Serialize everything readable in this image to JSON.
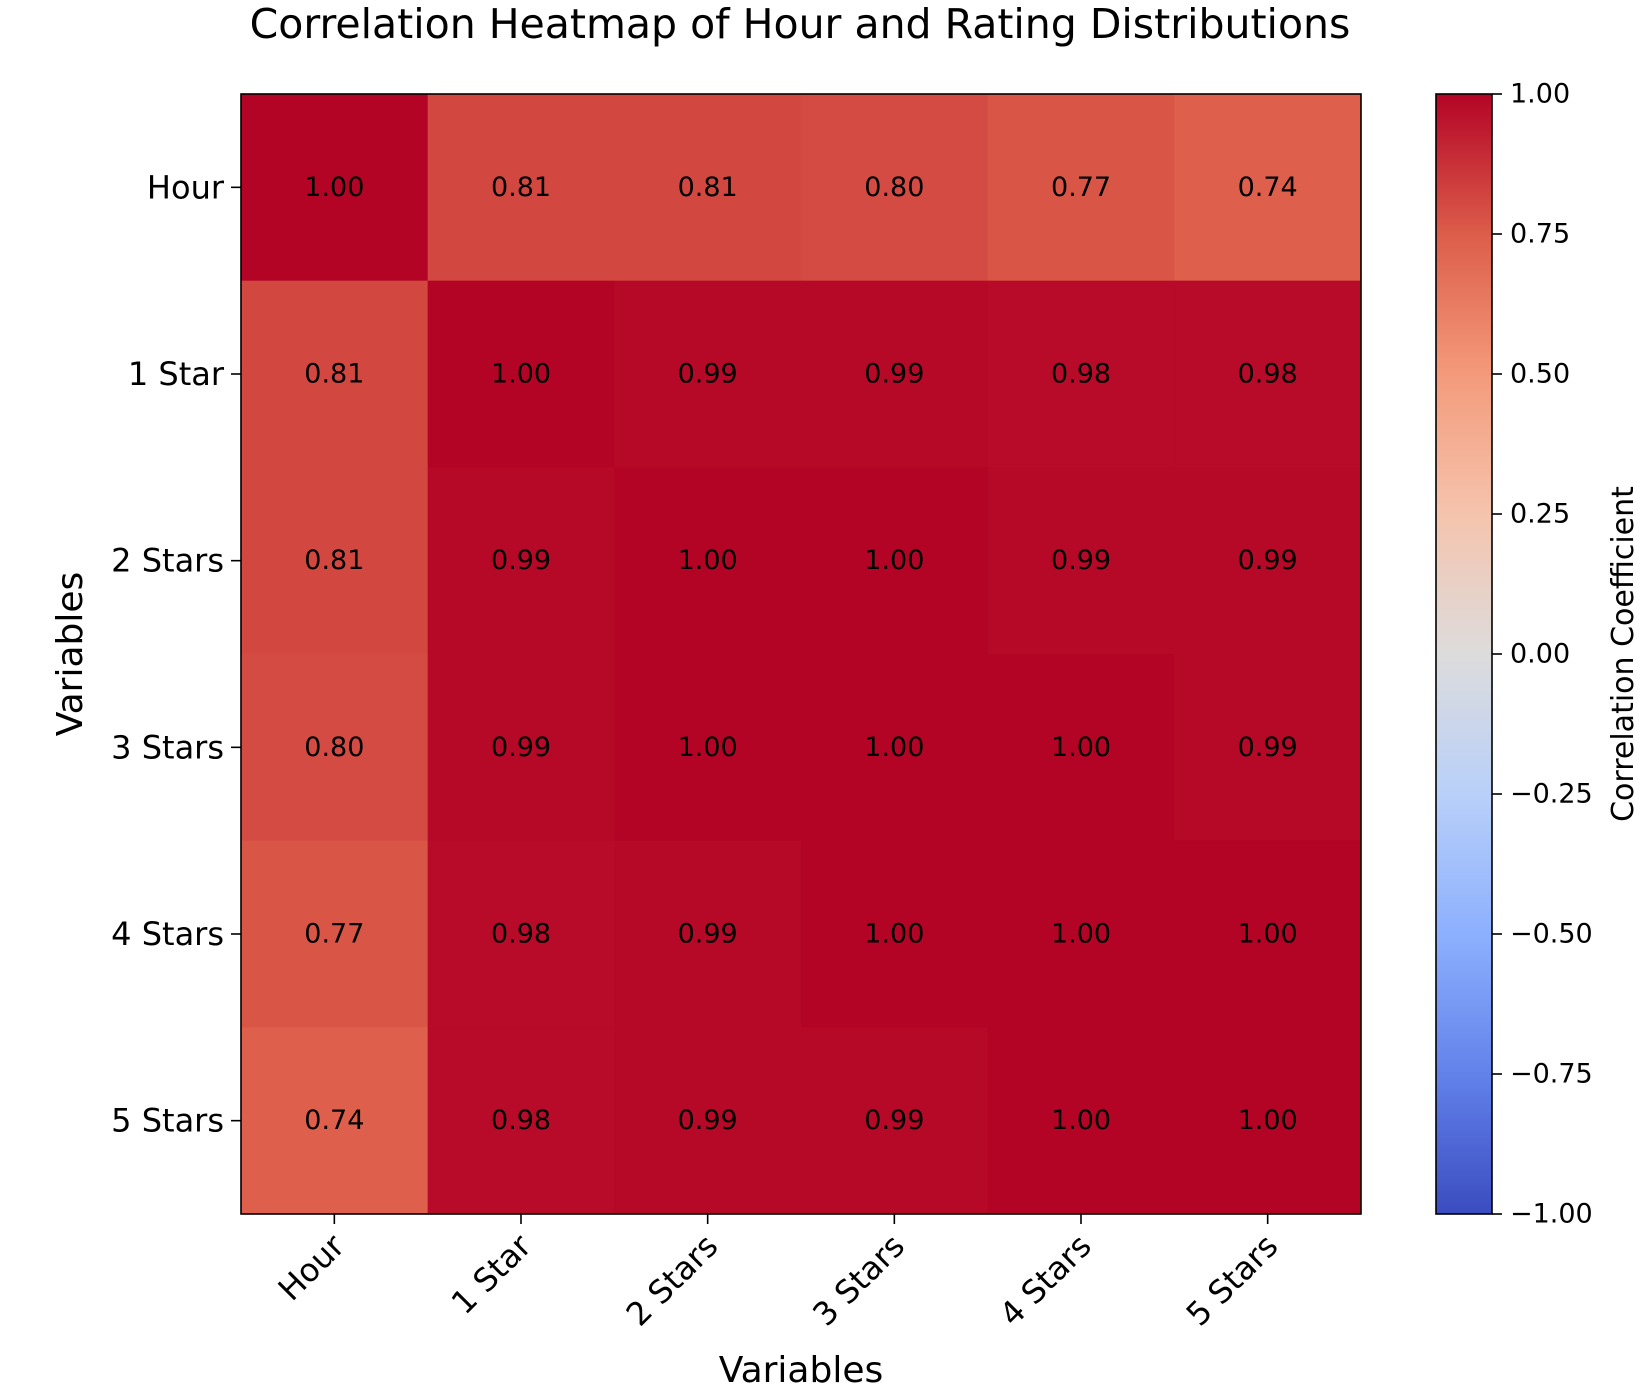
{
  "chart_data": {
    "type": "heatmap",
    "title": "Correlation Heatmap of Hour and Rating Distributions",
    "xlabel": "Variables",
    "ylabel": "Variables",
    "x_categories": [
      "Hour",
      "1 Star",
      "2 Stars",
      "3 Stars",
      "4 Stars",
      "5 Stars"
    ],
    "y_categories": [
      "Hour",
      "1 Star",
      "2 Stars",
      "3 Stars",
      "4 Stars",
      "5 Stars"
    ],
    "values": [
      [
        1.0,
        0.81,
        0.81,
        0.8,
        0.77,
        0.74
      ],
      [
        0.81,
        1.0,
        0.99,
        0.99,
        0.98,
        0.98
      ],
      [
        0.81,
        0.99,
        1.0,
        1.0,
        0.99,
        0.99
      ],
      [
        0.8,
        0.99,
        1.0,
        1.0,
        1.0,
        0.99
      ],
      [
        0.77,
        0.98,
        0.99,
        1.0,
        1.0,
        1.0
      ],
      [
        0.74,
        0.98,
        0.99,
        0.99,
        1.0,
        1.0
      ]
    ],
    "value_format": "0.00",
    "colormap": "coolwarm",
    "colorbar": {
      "label": "Correlation Coefficient",
      "range": [
        -1.0,
        1.0
      ],
      "ticks": [
        1.0,
        0.75,
        0.5,
        0.25,
        0.0,
        -0.25,
        -0.5,
        -0.75,
        -1.0
      ],
      "tick_labels": [
        "1.00",
        "0.75",
        "0.50",
        "0.25",
        "0.00",
        "−0.25",
        "−0.50",
        "−0.75",
        "−1.00"
      ],
      "placement": "right"
    },
    "x_tick_rotation_deg": 45
  }
}
